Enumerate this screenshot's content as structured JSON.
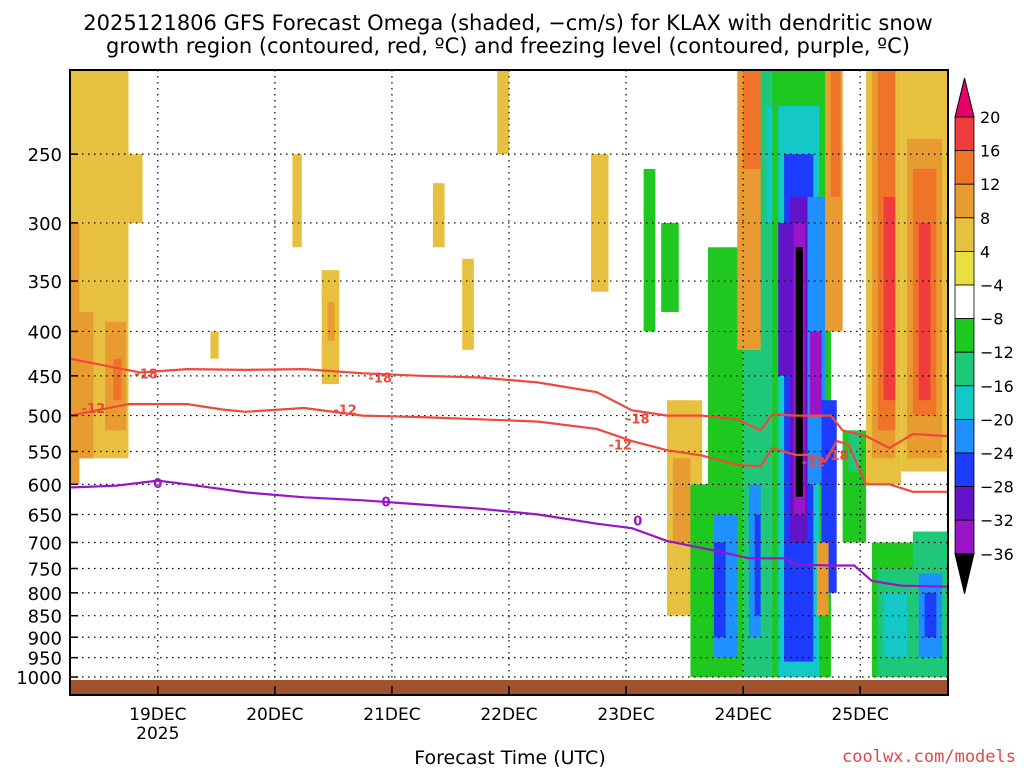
{
  "title_line1": "2025121806 GFS Forecast Omega (shaded, −cm/s) for KLAX with dendritic snow",
  "title_line2": "growth region (contoured, red, ºC) and freezing level (contoured, purple, ºC)",
  "xlabel": "Forecast Time (UTC)",
  "credit": "coolwx.com/models",
  "colors": {
    "freezing_level": "#9a14c8",
    "dendritic": "#f0483c",
    "ground": "#a0522d",
    "credit": "#e04848"
  },
  "chart_data": {
    "type": "heatmap",
    "y_axis": {
      "unit": "hPa",
      "scale": "log",
      "ylim": [
        1000,
        200
      ],
      "ticks": [
        250,
        300,
        350,
        400,
        450,
        500,
        550,
        600,
        650,
        700,
        750,
        800,
        850,
        900,
        950,
        1000
      ]
    },
    "x_axis": {
      "range": [
        "2025-12-18 06:00",
        "2025-12-25 18:00"
      ],
      "ticks": [
        {
          "t": 0.75,
          "label": "19DEC",
          "sublabel": "2025"
        },
        {
          "t": 1.75,
          "label": "20DEC",
          "sublabel": ""
        },
        {
          "t": 2.75,
          "label": "21DEC",
          "sublabel": ""
        },
        {
          "t": 3.75,
          "label": "22DEC",
          "sublabel": ""
        },
        {
          "t": 4.75,
          "label": "23DEC",
          "sublabel": ""
        },
        {
          "t": 5.75,
          "label": "24DEC",
          "sublabel": ""
        },
        {
          "t": 6.75,
          "label": "25DEC",
          "sublabel": ""
        }
      ]
    },
    "colorbar": {
      "levels": [
        20,
        16,
        12,
        8,
        4,
        -4,
        -8,
        -12,
        -16,
        -20,
        -24,
        -28,
        -32,
        -36
      ],
      "colors": [
        "#e8006a",
        "#f03c3c",
        "#f07428",
        "#e89b30",
        "#e8c040",
        "#e8e040",
        "#ffffff",
        "#1ec81e",
        "#1ec878",
        "#14c8c8",
        "#1e90ff",
        "#1e3cff",
        "#6414c8",
        "#9a14c8",
        "#aaaaaa",
        "#000000"
      ]
    },
    "contours": [
      {
        "name": "freezing level 0",
        "label": "0",
        "points": [
          [
            0,
            605
          ],
          [
            0.4,
            602
          ],
          [
            0.75,
            594
          ],
          [
            1.0,
            600
          ],
          [
            1.5,
            613
          ],
          [
            2.0,
            621
          ],
          [
            2.5,
            626
          ],
          [
            3.0,
            633
          ],
          [
            3.5,
            640
          ],
          [
            4.0,
            650
          ],
          [
            4.5,
            666
          ],
          [
            4.8,
            674
          ],
          [
            5.1,
            697
          ],
          [
            5.5,
            715
          ],
          [
            5.8,
            730
          ],
          [
            6.1,
            730
          ],
          [
            6.2,
            742
          ],
          [
            6.5,
            744
          ],
          [
            6.7,
            744
          ],
          [
            6.85,
            775
          ],
          [
            7.1,
            785
          ],
          [
            7.5,
            787
          ]
        ]
      },
      {
        "name": "dendritic -12",
        "label": "-12",
        "points": [
          [
            0,
            500
          ],
          [
            0.5,
            485
          ],
          [
            1.0,
            485
          ],
          [
            1.3,
            492
          ],
          [
            1.5,
            495
          ],
          [
            2.0,
            490
          ],
          [
            2.5,
            500
          ],
          [
            3.0,
            502
          ],
          [
            3.5,
            505
          ],
          [
            4.0,
            508
          ],
          [
            4.5,
            518
          ],
          [
            4.8,
            535
          ],
          [
            5.1,
            548
          ],
          [
            5.4,
            556
          ],
          [
            5.7,
            570
          ],
          [
            5.9,
            572
          ],
          [
            6.0,
            545
          ],
          [
            6.2,
            555
          ],
          [
            6.3,
            555
          ],
          [
            6.45,
            565
          ],
          [
            6.55,
            535
          ],
          [
            6.65,
            540
          ],
          [
            6.8,
            600
          ],
          [
            7.0,
            600
          ],
          [
            7.2,
            612
          ],
          [
            7.5,
            612
          ]
        ]
      },
      {
        "name": "dendritic -18",
        "label": "-18",
        "points": [
          [
            0,
            430
          ],
          [
            0.3,
            438
          ],
          [
            0.6,
            446
          ],
          [
            1.0,
            442
          ],
          [
            1.5,
            443
          ],
          [
            2.0,
            442
          ],
          [
            2.5,
            447
          ],
          [
            3.0,
            450
          ],
          [
            3.5,
            452
          ],
          [
            4.0,
            458
          ],
          [
            4.5,
            470
          ],
          [
            4.8,
            493
          ],
          [
            5.1,
            500
          ],
          [
            5.4,
            500
          ],
          [
            5.7,
            505
          ],
          [
            5.9,
            520
          ],
          [
            6.0,
            498
          ],
          [
            6.2,
            500
          ],
          [
            6.5,
            500
          ],
          [
            6.6,
            520
          ],
          [
            6.8,
            528
          ],
          [
            7.0,
            545
          ],
          [
            7.2,
            525
          ],
          [
            7.5,
            528
          ]
        ]
      }
    ],
    "contour_labels": [
      {
        "text": "-18",
        "t": 0.65,
        "p": 447
      },
      {
        "text": "-18",
        "t": 2.65,
        "p": 452
      },
      {
        "text": "-18",
        "t": 4.85,
        "p": 504
      },
      {
        "text": "-12",
        "t": 0.2,
        "p": 490
      },
      {
        "text": "-12",
        "t": 2.35,
        "p": 492
      },
      {
        "text": "-12",
        "t": 4.7,
        "p": 540
      },
      {
        "text": "-12",
        "t": 6.35,
        "p": 565
      },
      {
        "text": "-18",
        "t": 6.55,
        "p": 555
      },
      {
        "text": "0",
        "t": 0.75,
        "p": 598
      },
      {
        "text": "0",
        "t": 2.7,
        "p": 628
      },
      {
        "text": "0",
        "t": 4.85,
        "p": 660
      }
    ],
    "shaded_cells": [
      {
        "t0": 0.0,
        "t1": 0.5,
        "p0": 200,
        "p1": 560,
        "v": 5
      },
      {
        "t0": 0.0,
        "t1": 0.08,
        "p0": 300,
        "p1": 600,
        "v": 9
      },
      {
        "t0": 0.05,
        "t1": 0.2,
        "p0": 380,
        "p1": 560,
        "v": 10
      },
      {
        "t0": 0.3,
        "t1": 0.48,
        "p0": 390,
        "p1": 520,
        "v": 10
      },
      {
        "t0": 0.37,
        "t1": 0.44,
        "p0": 430,
        "p1": 480,
        "v": 13
      },
      {
        "t0": 0.5,
        "t1": 0.62,
        "p0": 250,
        "p1": 300,
        "v": 5
      },
      {
        "t0": 0.4,
        "t1": 0.5,
        "p0": 640,
        "p1": 720,
        "v": -6
      },
      {
        "t0": 0.05,
        "t1": 0.08,
        "p0": 800,
        "p1": 860,
        "v": -6
      },
      {
        "t0": 0.0,
        "t1": 0.03,
        "p0": 620,
        "p1": 780,
        "v": -6
      },
      {
        "t0": 1.15,
        "t1": 1.2,
        "p0": 280,
        "p1": 320,
        "v": -6
      },
      {
        "t0": 1.2,
        "t1": 1.27,
        "p0": 400,
        "p1": 430,
        "v": 5
      },
      {
        "t0": 1.9,
        "t1": 1.98,
        "p0": 250,
        "p1": 320,
        "v": 5
      },
      {
        "t0": 2.15,
        "t1": 2.3,
        "p0": 340,
        "p1": 460,
        "v": 5
      },
      {
        "t0": 2.2,
        "t1": 2.26,
        "p0": 370,
        "p1": 410,
        "v": 9
      },
      {
        "t0": 3.1,
        "t1": 3.2,
        "p0": 270,
        "p1": 320,
        "v": 5
      },
      {
        "t0": 3.35,
        "t1": 3.45,
        "p0": 330,
        "p1": 420,
        "v": 5
      },
      {
        "t0": 3.65,
        "t1": 3.75,
        "p0": 200,
        "p1": 250,
        "v": 5
      },
      {
        "t0": 4.45,
        "t1": 4.6,
        "p0": 250,
        "p1": 360,
        "v": 5
      },
      {
        "t0": 4.6,
        "t1": 4.68,
        "p0": 380,
        "p1": 460,
        "v": -6
      },
      {
        "t0": 4.82,
        "t1": 5.05,
        "p0": 200,
        "p1": 680,
        "v": -6
      },
      {
        "t0": 4.9,
        "t1": 5.0,
        "p0": 260,
        "p1": 400,
        "v": -10
      },
      {
        "t0": 5.05,
        "t1": 5.2,
        "p0": 300,
        "p1": 380,
        "v": -10
      },
      {
        "t0": 5.1,
        "t1": 5.4,
        "p0": 480,
        "p1": 850,
        "v": 5
      },
      {
        "t0": 5.15,
        "t1": 5.3,
        "p0": 560,
        "p1": 700,
        "v": 9
      },
      {
        "t0": 5.3,
        "t1": 5.45,
        "p0": 380,
        "p1": 480,
        "v": -6
      },
      {
        "t0": 5.3,
        "t1": 5.65,
        "p0": 600,
        "p1": 1000,
        "v": -10
      },
      {
        "t0": 5.45,
        "t1": 5.75,
        "p0": 320,
        "p1": 1000,
        "v": -10
      },
      {
        "t0": 5.5,
        "t1": 5.7,
        "p0": 650,
        "p1": 950,
        "v": -22
      },
      {
        "t0": 5.5,
        "t1": 5.6,
        "p0": 700,
        "p1": 900,
        "v": -26
      },
      {
        "t0": 5.7,
        "t1": 5.95,
        "p0": 200,
        "p1": 420,
        "v": 11
      },
      {
        "t0": 5.75,
        "t1": 5.9,
        "p0": 200,
        "p1": 260,
        "v": 15
      },
      {
        "t0": 5.75,
        "t1": 6.0,
        "p0": 420,
        "p1": 1000,
        "v": -14
      },
      {
        "t0": 5.8,
        "t1": 5.95,
        "p0": 600,
        "p1": 900,
        "v": -22
      },
      {
        "t0": 5.85,
        "t1": 5.9,
        "p0": 650,
        "p1": 850,
        "v": -26
      },
      {
        "t0": 5.9,
        "t1": 6.1,
        "p0": 200,
        "p1": 1000,
        "v": -14
      },
      {
        "t0": 5.95,
        "t1": 6.05,
        "p0": 220,
        "p1": 300,
        "v": -18
      },
      {
        "t0": 6.0,
        "t1": 6.5,
        "p0": 200,
        "p1": 1000,
        "v": -10
      },
      {
        "t0": 6.05,
        "t1": 6.4,
        "p0": 220,
        "p1": 1000,
        "v": -18
      },
      {
        "t0": 6.1,
        "t1": 6.35,
        "p0": 250,
        "p1": 960,
        "v": -26
      },
      {
        "t0": 6.15,
        "t1": 6.3,
        "p0": 280,
        "p1": 700,
        "v": -30
      },
      {
        "t0": 6.18,
        "t1": 6.28,
        "p0": 300,
        "p1": 650,
        "v": -34
      },
      {
        "t0": 6.2,
        "t1": 6.26,
        "p0": 320,
        "p1": 620,
        "v": -40
      },
      {
        "t0": 6.05,
        "t1": 6.15,
        "p0": 300,
        "p1": 450,
        "v": -30
      },
      {
        "t0": 6.3,
        "t1": 6.45,
        "p0": 280,
        "p1": 600,
        "v": -22
      },
      {
        "t0": 6.32,
        "t1": 6.42,
        "p0": 400,
        "p1": 500,
        "v": -34
      },
      {
        "t0": 6.42,
        "t1": 6.55,
        "p0": 480,
        "p1": 800,
        "v": -26
      },
      {
        "t0": 6.45,
        "t1": 6.6,
        "p0": 200,
        "p1": 400,
        "v": 11
      },
      {
        "t0": 6.5,
        "t1": 6.58,
        "p0": 200,
        "p1": 280,
        "v": 15
      },
      {
        "t0": 6.38,
        "t1": 6.48,
        "p0": 700,
        "p1": 850,
        "v": 9
      },
      {
        "t0": 6.55,
        "t1": 6.85,
        "p0": 600,
        "p1": 1000,
        "v": -6
      },
      {
        "t0": 6.6,
        "t1": 6.8,
        "p0": 520,
        "p1": 700,
        "v": -10
      },
      {
        "t0": 6.65,
        "t1": 6.75,
        "p0": 520,
        "p1": 580,
        "v": -14
      },
      {
        "t0": 6.85,
        "t1": 7.35,
        "p0": 700,
        "p1": 1000,
        "v": -10
      },
      {
        "t0": 6.9,
        "t1": 7.2,
        "p0": 750,
        "p1": 1000,
        "v": -14
      },
      {
        "t0": 6.95,
        "t1": 7.15,
        "p0": 800,
        "p1": 950,
        "v": -18
      },
      {
        "t0": 7.2,
        "t1": 7.5,
        "p0": 680,
        "p1": 1000,
        "v": -14
      },
      {
        "t0": 7.25,
        "t1": 7.45,
        "p0": 760,
        "p1": 950,
        "v": -22
      },
      {
        "t0": 7.3,
        "t1": 7.4,
        "p0": 800,
        "p1": 900,
        "v": -26
      },
      {
        "t0": 6.8,
        "t1": 7.1,
        "p0": 200,
        "p1": 600,
        "v": 5
      },
      {
        "t0": 6.85,
        "t1": 7.05,
        "p0": 200,
        "p1": 560,
        "v": 9
      },
      {
        "t0": 6.9,
        "t1": 7.05,
        "p0": 200,
        "p1": 520,
        "v": 13
      },
      {
        "t0": 6.95,
        "t1": 7.05,
        "p0": 280,
        "p1": 480,
        "v": 18
      },
      {
        "t0": 7.1,
        "t1": 7.5,
        "p0": 200,
        "p1": 580,
        "v": 5
      },
      {
        "t0": 7.15,
        "t1": 7.45,
        "p0": 240,
        "p1": 560,
        "v": 9
      },
      {
        "t0": 7.2,
        "t1": 7.4,
        "p0": 260,
        "p1": 500,
        "v": 13
      },
      {
        "t0": 7.25,
        "t1": 7.35,
        "p0": 300,
        "p1": 480,
        "v": 18
      }
    ]
  }
}
